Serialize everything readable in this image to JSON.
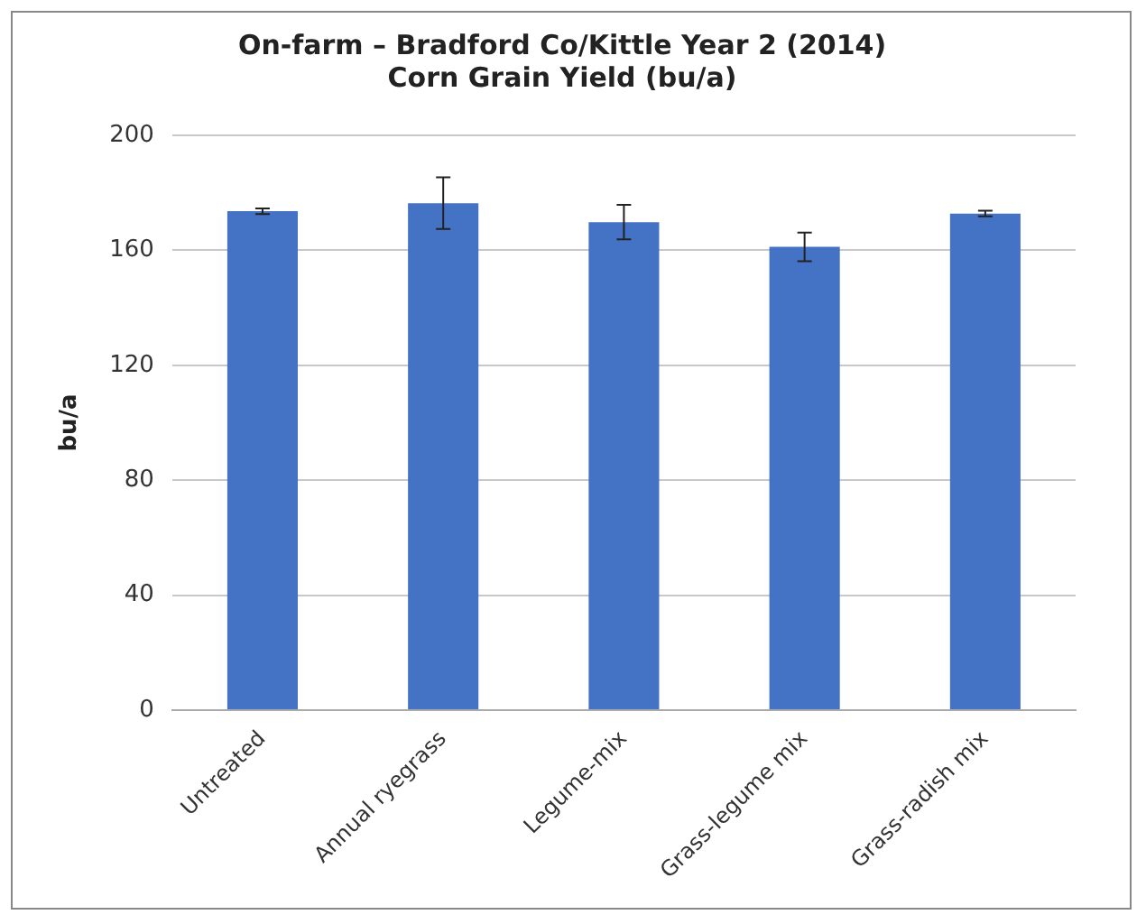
{
  "chart_data": {
    "type": "bar",
    "title": "On-farm – Bradford Co/Kittle Year 2 (2014)",
    "subtitle": "Corn Grain Yield (bu/a)",
    "ylabel": "bu/a",
    "categories": [
      "Untreated",
      "Annual ryegrass",
      "Legume-mix",
      "Grass-legume mix",
      "Grass-radish mix"
    ],
    "values": [
      173.6,
      176.4,
      169.8,
      161.2,
      172.8
    ],
    "errors": [
      1,
      9,
      6,
      5,
      1
    ],
    "color": "#4472c4",
    "ylim": [
      0,
      200
    ],
    "yticks": [
      0,
      40,
      80,
      120,
      160,
      200
    ],
    "grid": "y",
    "legend": false
  }
}
